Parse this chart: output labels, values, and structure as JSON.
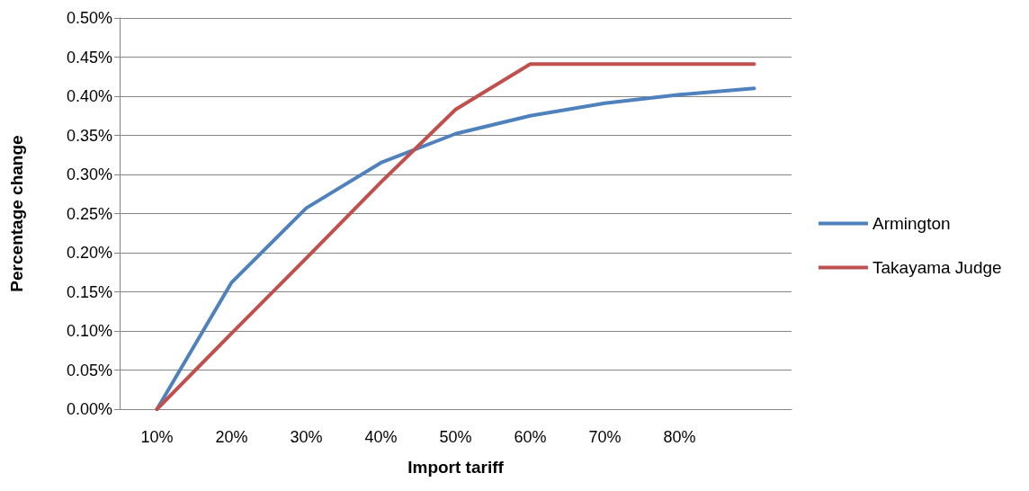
{
  "chart_data": {
    "type": "line",
    "xlabel": "Import tariff",
    "ylabel": "Percentage change",
    "categories": [
      "10%",
      "20%",
      "30%",
      "40%",
      "50%",
      "60%",
      "70%",
      "80%",
      null
    ],
    "series": [
      {
        "name": "Armington",
        "color": "#4f81bd",
        "values": [
          0,
          0.162,
          0.257,
          0.315,
          0.352,
          0.375,
          0.391,
          0.402,
          0.41
        ]
      },
      {
        "name": "Takayama Judge",
        "color": "#c0504d",
        "values": [
          0,
          0.097,
          0.193,
          0.29,
          0.383,
          0.441,
          0.441,
          0.441,
          0.441
        ]
      }
    ],
    "ylim": [
      0,
      0.5
    ],
    "yticks": [
      {
        "value": 0,
        "label": "0.00%"
      },
      {
        "value": 0.05,
        "label": "0.05%"
      },
      {
        "value": 0.1,
        "label": "0.10%"
      },
      {
        "value": 0.15,
        "label": "0.15%"
      },
      {
        "value": 0.2,
        "label": "0.20%"
      },
      {
        "value": 0.25,
        "label": "0.25%"
      },
      {
        "value": 0.3,
        "label": "0.30%"
      },
      {
        "value": 0.35,
        "label": "0.35%"
      },
      {
        "value": 0.4,
        "label": "0.40%"
      },
      {
        "value": 0.45,
        "label": "0.45%"
      },
      {
        "value": 0.5,
        "label": "0.50%"
      }
    ],
    "grid": "y",
    "legend": "right",
    "marker": "none",
    "line_style": "solid"
  }
}
